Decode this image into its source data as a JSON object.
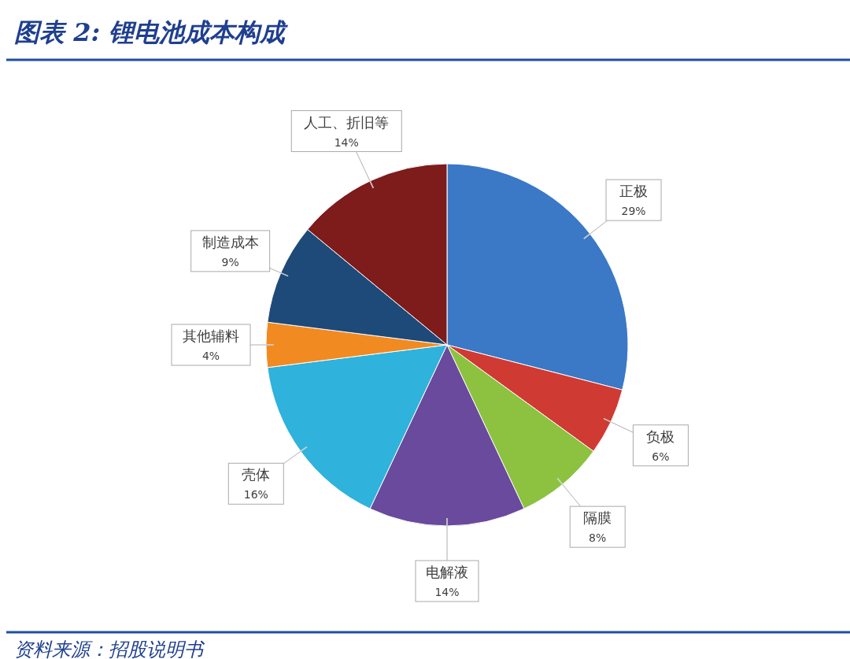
{
  "chart_data": {
    "type": "pie",
    "title": "图表 2:  锂电池成本构成",
    "categories": [
      "正极",
      "负极",
      "隔膜",
      "电解液",
      "壳体",
      "其他辅料",
      "制造成本",
      "人工、折旧等"
    ],
    "values": [
      29,
      6,
      8,
      14,
      16,
      4,
      9,
      14
    ],
    "value_labels": [
      "29%",
      "6%",
      "8%",
      "14%",
      "16%",
      "4%",
      "9%",
      "14%"
    ],
    "colors": [
      "#3b78c6",
      "#cf3a33",
      "#8cc23f",
      "#6a4a9c",
      "#2fb2dc",
      "#f28a22",
      "#1e4a7a",
      "#7e1b1b"
    ],
    "annotations": [
      "资料来源：招股说明书"
    ]
  }
}
